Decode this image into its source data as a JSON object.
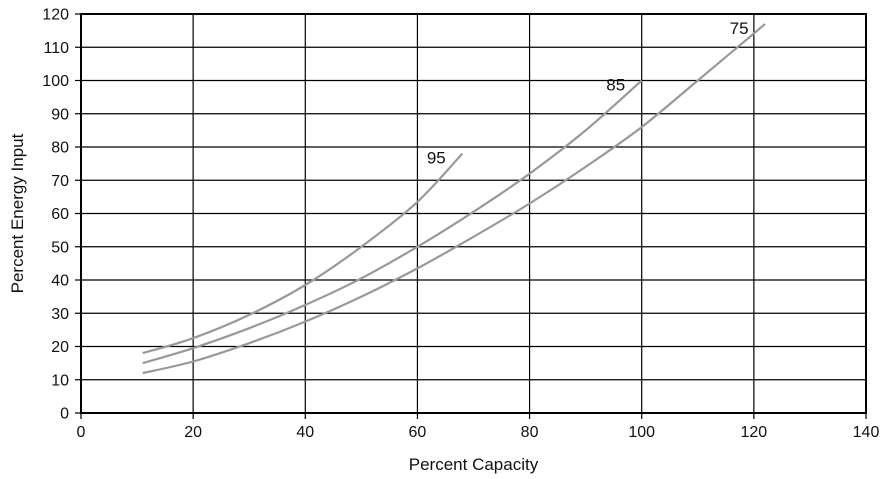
{
  "chart_data": {
    "type": "line",
    "title": "",
    "xlabel": "Percent Capacity",
    "ylabel": "Percent Energy Input",
    "xlim": [
      0,
      140
    ],
    "ylim": [
      0,
      120
    ],
    "x_ticks": [
      "0",
      "20",
      "40",
      "60",
      "80",
      "100",
      "120",
      "140"
    ],
    "y_ticks": [
      "0",
      "10",
      "20",
      "30",
      "40",
      "50",
      "60",
      "70",
      "80",
      "90",
      "100",
      "110",
      "120"
    ],
    "grid": true,
    "legend": "none",
    "series_color": "#999999",
    "series": [
      {
        "name": "95",
        "x": [
          11,
          20,
          30,
          40,
          50,
          60,
          68
        ],
        "y": [
          18,
          22.5,
          29.5,
          38.5,
          50,
          63.5,
          78
        ]
      },
      {
        "name": "85",
        "x": [
          11,
          20,
          30,
          40,
          50,
          60,
          70,
          80,
          90,
          100
        ],
        "y": [
          15,
          19.5,
          25.5,
          32.5,
          40.5,
          50,
          60.5,
          72,
          85,
          100
        ]
      },
      {
        "name": "75",
        "x": [
          11,
          20,
          30,
          40,
          50,
          60,
          70,
          80,
          90,
          100,
          110,
          122
        ],
        "y": [
          12,
          15.5,
          21,
          27.5,
          35,
          43.5,
          53,
          63,
          74,
          86,
          100,
          117
        ]
      }
    ]
  }
}
